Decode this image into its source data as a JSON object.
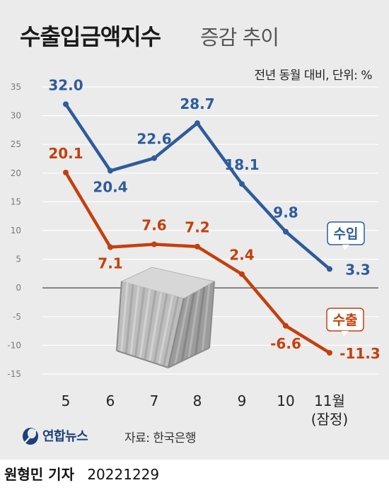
{
  "title": "수출입금액지수",
  "subtitle": "증감 추이",
  "unit_note": "전년 동월 대비, 단위: %",
  "source": "자료: 한국은행",
  "logo_text": "연합뉴스",
  "byline": {
    "reporter": "원형민 기자",
    "date": "20221229"
  },
  "colors": {
    "import": "#2e5c9c",
    "export": "#c4400e",
    "background": "#ebebeb",
    "zero_line": "#555555"
  },
  "icons": [
    "shipping-container-illustration",
    "yonhap-logo-icon"
  ],
  "chart_data": {
    "type": "line",
    "x": [
      "5",
      "6",
      "7",
      "8",
      "9",
      "10",
      "11월 (잠정)"
    ],
    "ylim": [
      -15,
      35
    ],
    "yticks": [
      35,
      30,
      25,
      20,
      15,
      10,
      5,
      0,
      -5,
      -10,
      -15
    ],
    "grid": true,
    "series": [
      {
        "name": "수입",
        "values": [
          32.0,
          20.4,
          22.6,
          28.7,
          18.1,
          9.8,
          3.3
        ],
        "labels": [
          "32.0",
          "20.4",
          "22.6",
          "28.7",
          "18.1",
          "9.8",
          "3.3"
        ]
      },
      {
        "name": "수출",
        "values": [
          20.1,
          7.1,
          7.6,
          7.2,
          2.4,
          -6.6,
          -11.3
        ],
        "labels": [
          "20.1",
          "7.1",
          "7.6",
          "7.2",
          "2.4",
          "-6.6",
          "-11.3"
        ]
      }
    ]
  }
}
